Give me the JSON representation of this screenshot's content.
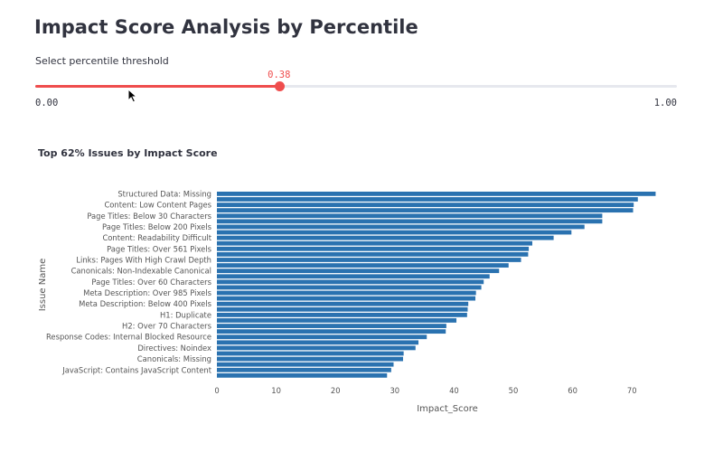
{
  "page": {
    "title": "Impact Score Analysis by Percentile"
  },
  "slider": {
    "label": "Select percentile threshold",
    "value": 0.38,
    "value_text": "0.38",
    "min": 0,
    "max": 1,
    "min_text": "0.00",
    "max_text": "1.00",
    "color": "#ef4d4d"
  },
  "chart_data": {
    "type": "bar",
    "orientation": "horizontal",
    "title": "Top 62% Issues by Impact Score",
    "xlabel": "Impact_Score",
    "ylabel": "Issue Name",
    "xlim": [
      0,
      75
    ],
    "xticks": [
      0,
      10,
      20,
      30,
      40,
      50,
      60,
      70
    ],
    "bar_color": "#2a72b0",
    "grid": false,
    "categories": [
      "Structured Data: Missing",
      "",
      "Content: Low Content Pages",
      "",
      "Page Titles: Below 30 Characters",
      "",
      "Page Titles: Below 200 Pixels",
      "",
      "Content: Readability Difficult",
      "",
      "Page Titles: Over 561 Pixels",
      "",
      "Links: Pages With High Crawl Depth",
      "",
      "Canonicals: Non-Indexable Canonical",
      "",
      "Page Titles: Over 60 Characters",
      "",
      "Meta Description: Over 985 Pixels",
      "",
      "Meta Description: Below 400 Pixels",
      "",
      "H1: Duplicate",
      "",
      "H2: Over 70 Characters",
      "",
      "Response Codes: Internal Blocked Resource",
      "",
      "Directives: Noindex",
      "",
      "Canonicals: Missing",
      "",
      "JavaScript: Contains JavaScript Content",
      ""
    ],
    "values": [
      74,
      71,
      70.3,
      70.2,
      65,
      65,
      62,
      59.8,
      56.8,
      53.2,
      52.6,
      52.5,
      51.3,
      49.2,
      47.6,
      46,
      45,
      44.6,
      43.7,
      43.6,
      42.4,
      42.3,
      42.2,
      40.4,
      38.7,
      38.6,
      35.4,
      34,
      33.5,
      31.5,
      31.4,
      29.8,
      29.4,
      28.7
    ]
  }
}
